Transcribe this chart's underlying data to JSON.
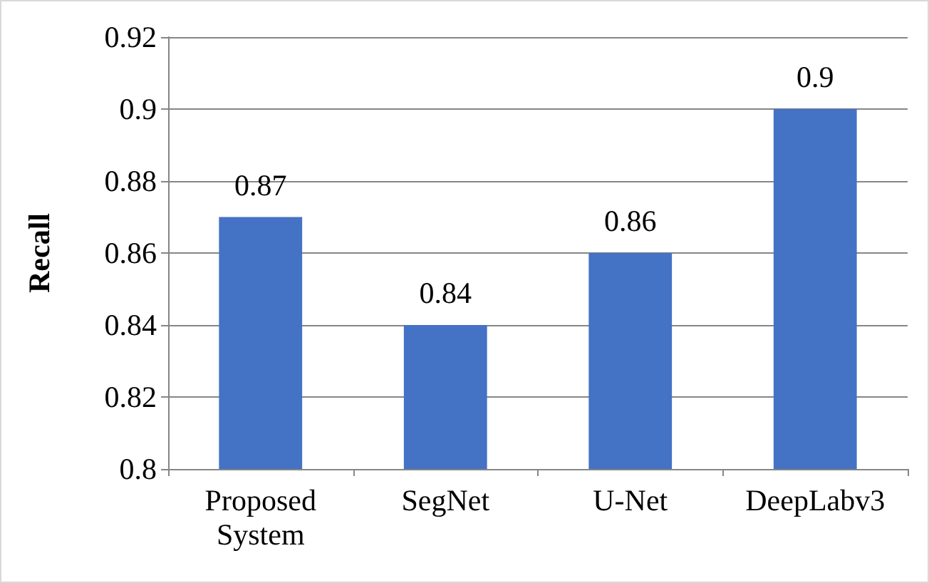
{
  "chart_data": {
    "type": "bar",
    "ylabel": "Recall",
    "categories": [
      "Proposed\nSystem",
      "SegNet",
      "U-Net",
      "DeepLabv3"
    ],
    "values": [
      0.87,
      0.84,
      0.86,
      0.9
    ],
    "color": "#4472c4",
    "ylim": [
      0.8,
      0.92
    ],
    "yticks": [
      0.8,
      0.82,
      0.84,
      0.86,
      0.88,
      0.9,
      0.92
    ],
    "grid": "y",
    "data_labels": true
  }
}
